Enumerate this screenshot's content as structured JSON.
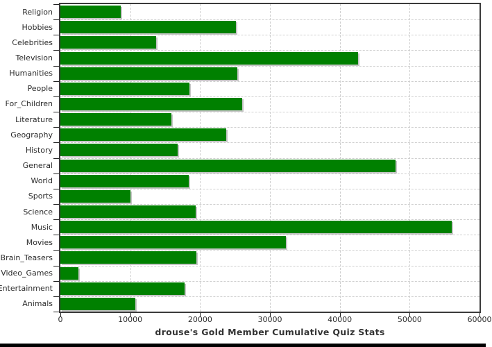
{
  "chart_data": {
    "type": "bar",
    "orientation": "horizontal",
    "title": "drouse's Gold Member Cumulative Quiz Stats",
    "categories": [
      "Religion",
      "Hobbies",
      "Celebrities",
      "Television",
      "Humanities",
      "People",
      "For_Children",
      "Literature",
      "Geography",
      "History",
      "General",
      "World",
      "Sports",
      "Science",
      "Music",
      "Movies",
      "Brain_Teasers",
      "Video_Games",
      "Entertainment",
      "Animals"
    ],
    "values": [
      8600,
      25100,
      13700,
      42600,
      25300,
      18500,
      26000,
      15900,
      23700,
      16800,
      48000,
      18400,
      10000,
      19400,
      56000,
      32300,
      19500,
      2600,
      17800,
      10700
    ],
    "xlabel": "",
    "ylabel": "",
    "xlim": [
      0,
      60000
    ],
    "x_ticks": [
      0,
      10000,
      20000,
      30000,
      40000,
      50000,
      60000
    ],
    "x_tick_labels": [
      "0",
      "10000",
      "20000",
      "30000",
      "40000",
      "50000",
      "60000"
    ],
    "grid": "dashed-both-axes",
    "legend_position": "none",
    "colors": {
      "bar": "#008000",
      "bar_shadow": "#c6c6c6",
      "gridline": "#cfcfcf",
      "plot_border": "#3a3a3a",
      "text": "#2b2b2b",
      "background": "#ffffff",
      "bottom_strip": "#000000"
    }
  }
}
